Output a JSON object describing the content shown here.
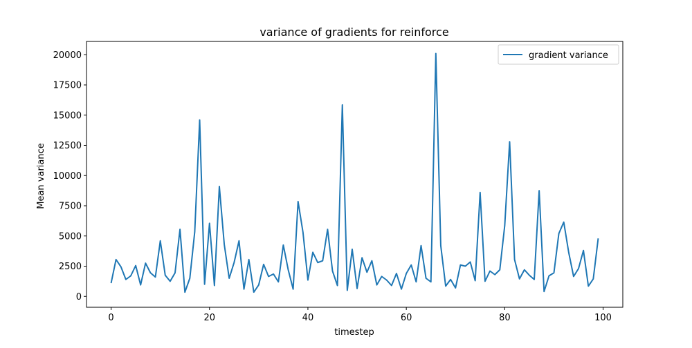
{
  "chart_data": {
    "type": "line",
    "title": "variance of gradients for reinforce",
    "xlabel": "timestep",
    "ylabel": "Mean variance",
    "xlim": [
      -5,
      104
    ],
    "ylim": [
      -900,
      21100
    ],
    "xticks": [
      0,
      20,
      40,
      60,
      80,
      100
    ],
    "yticks": [
      0,
      2500,
      5000,
      7500,
      10000,
      12500,
      15000,
      17500,
      20000
    ],
    "legend_position": "top-right",
    "grid": false,
    "series": [
      {
        "name": "gradient variance",
        "color": "#1f77b4",
        "x": [
          0,
          1,
          2,
          3,
          4,
          5,
          6,
          7,
          8,
          9,
          10,
          11,
          12,
          13,
          14,
          15,
          16,
          17,
          18,
          19,
          20,
          21,
          22,
          23,
          24,
          25,
          26,
          27,
          28,
          29,
          30,
          31,
          32,
          33,
          34,
          35,
          36,
          37,
          38,
          39,
          40,
          41,
          42,
          43,
          44,
          45,
          46,
          47,
          48,
          49,
          50,
          51,
          52,
          53,
          54,
          55,
          56,
          57,
          58,
          59,
          60,
          61,
          62,
          63,
          64,
          65,
          66,
          67,
          68,
          69,
          70,
          71,
          72,
          73,
          74,
          75,
          76,
          77,
          78,
          79,
          80,
          81,
          82,
          83,
          84,
          85,
          86,
          87,
          88,
          89,
          90,
          91,
          92,
          93,
          94,
          95,
          96,
          97,
          98,
          99
        ],
        "values": [
          1100,
          3050,
          2450,
          1400,
          1700,
          2550,
          950,
          2750,
          1950,
          1600,
          4600,
          1750,
          1250,
          1950,
          5550,
          350,
          1500,
          5350,
          14600,
          1000,
          6050,
          900,
          9100,
          4300,
          1500,
          2800,
          4600,
          600,
          3050,
          350,
          950,
          2650,
          1650,
          1850,
          1200,
          4250,
          2200,
          600,
          7850,
          5300,
          1350,
          3650,
          2800,
          2950,
          5550,
          2100,
          900,
          15850,
          500,
          3900,
          650,
          3200,
          2000,
          2950,
          950,
          1650,
          1350,
          900,
          1900,
          600,
          1900,
          2600,
          1200,
          4200,
          1500,
          1200,
          20100,
          4200,
          850,
          1400,
          700,
          2600,
          2500,
          2850,
          1300,
          8600,
          1250,
          2100,
          1800,
          2200,
          5850,
          12800,
          3050,
          1450,
          2200,
          1750,
          1400,
          8750,
          400,
          1700,
          1950,
          5200,
          6150,
          3650,
          1650,
          2300,
          3800,
          850,
          1450,
          4800
        ]
      }
    ]
  }
}
